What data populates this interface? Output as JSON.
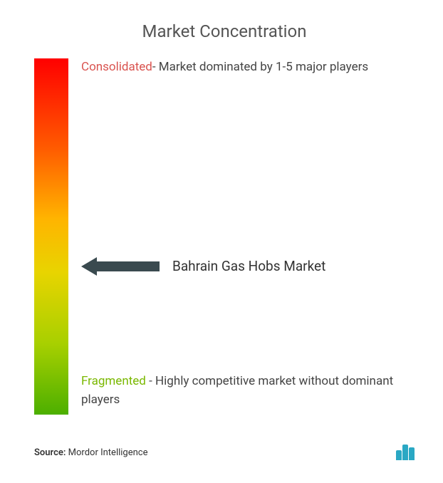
{
  "title": "Market Concentration",
  "gradient": {
    "stops": [
      "#ff0000",
      "#ff5a00",
      "#ffb400",
      "#e8d400",
      "#a8d000",
      "#4caf00"
    ]
  },
  "consolidated": {
    "lead": "Consolidated",
    "lead_color": "#d9534f",
    "text": "- Market dominated by 1-5 major players"
  },
  "fragmented": {
    "lead": "Fragmented",
    "lead_color": "#7ab800",
    "text": " - Highly competitive market without dominant players"
  },
  "pointer": {
    "market_name": "Bahrain Gas Hobs Market",
    "position_pct": 58,
    "arrow_color": "#3a4a4f"
  },
  "footer": {
    "source_label": "Source:",
    "source_value": "Mordor Intelligence",
    "logo_color": "#2aa8c4",
    "logo_bar_heights": [
      14,
      22,
      18
    ]
  }
}
